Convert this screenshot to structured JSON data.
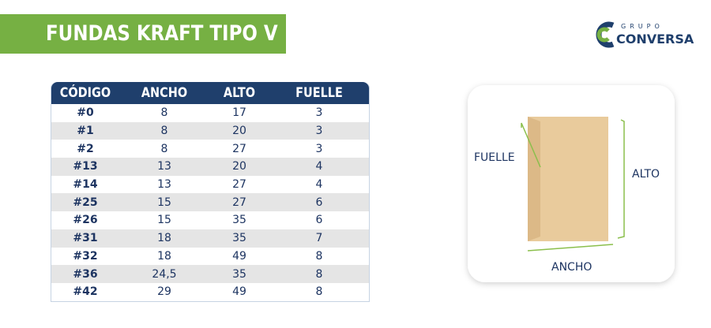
{
  "header": {
    "title": "FUNDAS KRAFT TIPO V"
  },
  "logo": {
    "tagline": "GRUPO",
    "name": "CONVERSA"
  },
  "table": {
    "columns": [
      "CÓDIGO",
      "ANCHO",
      "ALTO",
      "FUELLE"
    ],
    "rows": [
      [
        "#0",
        "8",
        "17",
        "3"
      ],
      [
        "#1",
        "8",
        "20",
        "3"
      ],
      [
        "#2",
        "8",
        "27",
        "3"
      ],
      [
        "#13",
        "13",
        "20",
        "4"
      ],
      [
        "#14",
        "13",
        "27",
        "4"
      ],
      [
        "#25",
        "15",
        "27",
        "6"
      ],
      [
        "#26",
        "15",
        "35",
        "6"
      ],
      [
        "#31",
        "18",
        "35",
        "7"
      ],
      [
        "#32",
        "18",
        "49",
        "8"
      ],
      [
        "#36",
        "24,5",
        "35",
        "8"
      ],
      [
        "#42",
        "29",
        "49",
        "8"
      ]
    ]
  },
  "diagram": {
    "fuelle": "FUELLE",
    "alto": "ALTO",
    "ancho": "ANCHO"
  }
}
